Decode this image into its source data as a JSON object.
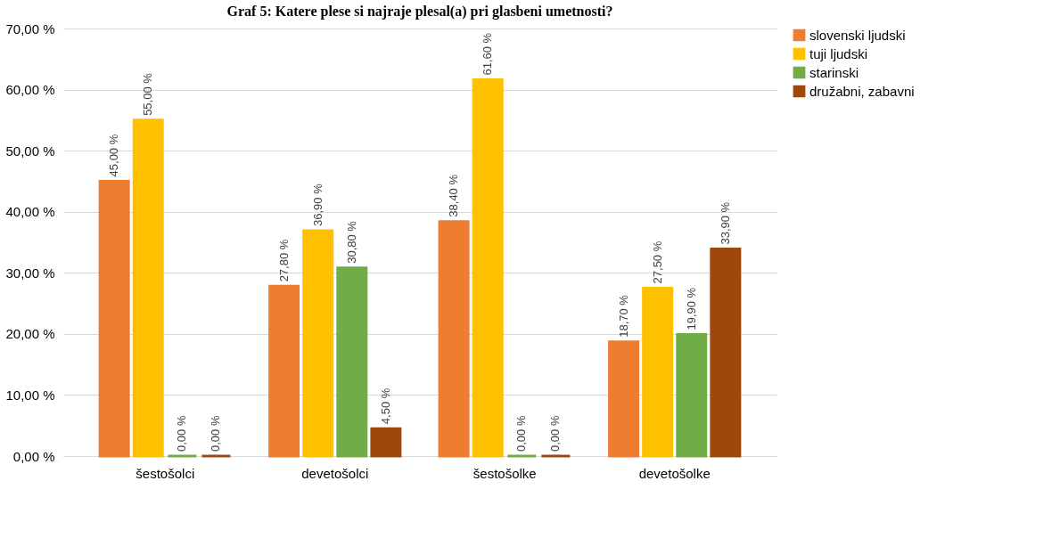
{
  "chart_data": {
    "type": "bar",
    "title": "Graf 5: Katere plese si najraje plesal(a) pri glasbeni umetnosti?",
    "categories": [
      "šestošolci",
      "devetošolci",
      "šestošolke",
      "devetošolke"
    ],
    "series": [
      {
        "name": "slovenski ljudski",
        "color": "#ed7d31",
        "values": [
          45.0,
          27.8,
          38.4,
          18.7
        ],
        "value_labels": [
          "45,00 %",
          "27,80 %",
          "38,40 %",
          "18,70 %"
        ]
      },
      {
        "name": "tuji ljudski",
        "color": "#ffc000",
        "values": [
          55.0,
          36.9,
          61.6,
          27.5
        ],
        "value_labels": [
          "55,00 %",
          "36,90 %",
          "61,60 %",
          "27,50 %"
        ]
      },
      {
        "name": "starinski",
        "color": "#70ad47",
        "values": [
          0.0,
          30.8,
          0.0,
          19.9
        ],
        "value_labels": [
          "0,00 %",
          "30,80 %",
          "0,00 %",
          "19,90 %"
        ]
      },
      {
        "name": "družabni, zabavni",
        "color": "#9e480e",
        "values": [
          0.0,
          4.5,
          0.0,
          33.9
        ],
        "value_labels": [
          "0,00 %",
          "4,50 %",
          "0,00 %",
          "33,90 %"
        ]
      }
    ],
    "ylim": [
      0,
      70
    ],
    "yticks": [
      {
        "value": 0,
        "label": "0,00 %"
      },
      {
        "value": 10,
        "label": "10,00 %"
      },
      {
        "value": 20,
        "label": "20,00 %"
      },
      {
        "value": 30,
        "label": "30,00 %"
      },
      {
        "value": 40,
        "label": "40,00 %"
      },
      {
        "value": 50,
        "label": "50,00 %"
      },
      {
        "value": 60,
        "label": "60,00 %"
      },
      {
        "value": 70,
        "label": "70,00 %"
      }
    ],
    "grid": "y",
    "legend": "right"
  }
}
